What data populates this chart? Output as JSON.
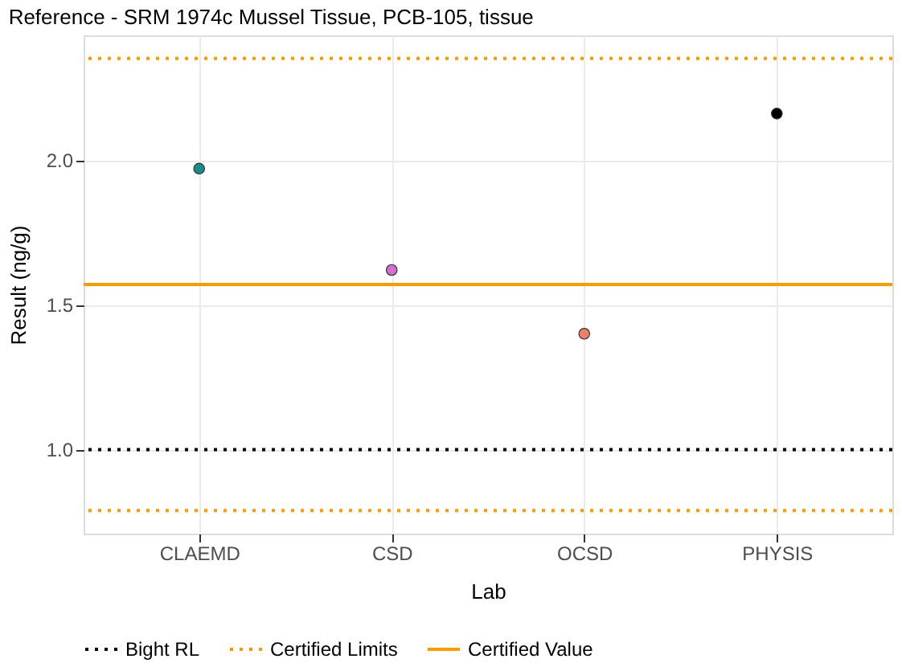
{
  "chart_data": {
    "type": "scatter",
    "title": "Reference - SRM 1974c Mussel Tissue, PCB-105, tissue",
    "xlabel": "Lab",
    "ylabel": "Result (ng/g)",
    "categories": [
      "CLAEMD",
      "CSD",
      "OCSD",
      "PHYSIS"
    ],
    "values": [
      1.97,
      1.62,
      1.4,
      2.16
    ],
    "colors": [
      "#1b8a8a",
      "#d36fd3",
      "#f07f6a",
      "#000000"
    ],
    "ylim": [
      0.71,
      2.43
    ],
    "yticks": [
      {
        "value": 1,
        "label": "1.0"
      },
      1.5,
      {
        "value": 2,
        "label": "2.0"
      }
    ],
    "ref_lines": [
      {
        "axis": "y",
        "value": 1.0,
        "label": "Bight RL",
        "color": "#000000",
        "line_style": "dotted"
      },
      {
        "axis": "y",
        "value": 2.35,
        "label": "Certified Limits",
        "color": "#ff9900",
        "line_style": "dotted"
      },
      {
        "axis": "y",
        "value": 0.79,
        "color": "#ff9900",
        "line_style": "dotted"
      },
      {
        "axis": "y",
        "value": 1.57,
        "label": "Certified Value",
        "color": "#ff9900",
        "line_style": "solid"
      }
    ],
    "grid": true,
    "legend": "bottom",
    "marker": "circle"
  }
}
